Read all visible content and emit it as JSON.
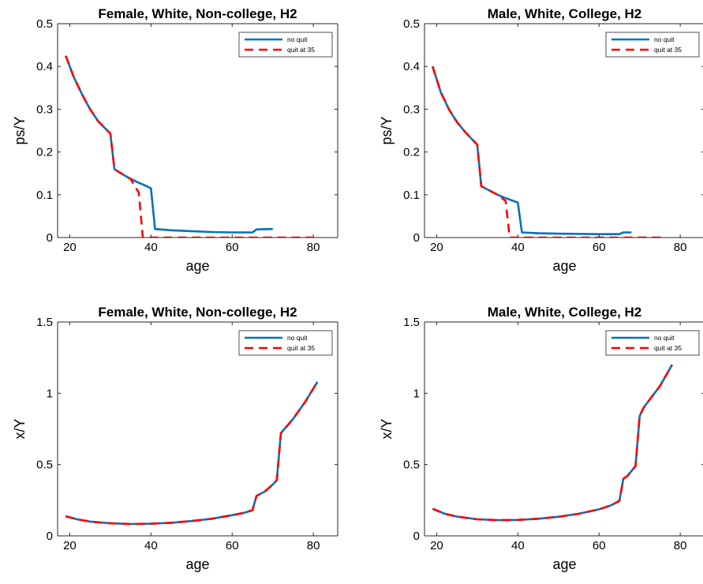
{
  "chart_data": [
    {
      "type": "line",
      "title": "Female, White, Non-college, H2",
      "xlabel": "age",
      "ylabel": "ps/Y",
      "xlim": [
        17,
        86
      ],
      "ylim": [
        0,
        0.5
      ],
      "xticks": [
        "20",
        "40",
        "60",
        "80"
      ],
      "yticks": [
        "0",
        "0.1",
        "0.2",
        "0.3",
        "0.4",
        "0.5"
      ],
      "legend_position": "top-right",
      "series": [
        {
          "name": "no quit",
          "color": "#0072BD",
          "style": "solid",
          "points": [
            [
              19,
              0.425
            ],
            [
              21,
              0.375
            ],
            [
              23,
              0.335
            ],
            [
              25,
              0.3
            ],
            [
              27,
              0.272
            ],
            [
              30,
              0.243
            ],
            [
              31,
              0.16
            ],
            [
              33,
              0.148
            ],
            [
              35,
              0.137
            ],
            [
              37,
              0.128
            ],
            [
              39,
              0.12
            ],
            [
              40,
              0.115
            ],
            [
              41,
              0.02
            ],
            [
              45,
              0.017
            ],
            [
              50,
              0.015
            ],
            [
              55,
              0.013
            ],
            [
              60,
              0.012
            ],
            [
              65,
              0.012
            ],
            [
              66,
              0.019
            ],
            [
              70,
              0.02
            ]
          ]
        },
        {
          "name": "quit at 35",
          "color": "#FF0000",
          "style": "dashed",
          "points": [
            [
              19,
              0.425
            ],
            [
              21,
              0.375
            ],
            [
              23,
              0.335
            ],
            [
              25,
              0.3
            ],
            [
              27,
              0.272
            ],
            [
              30,
              0.243
            ],
            [
              31,
              0.16
            ],
            [
              33,
              0.148
            ],
            [
              35,
              0.137
            ],
            [
              36,
              0.12
            ],
            [
              37,
              0.105
            ],
            [
              38,
              0.0
            ],
            [
              45,
              0.0
            ],
            [
              60,
              0.0
            ],
            [
              70,
              0.0
            ],
            [
              80,
              0.0
            ]
          ]
        }
      ]
    },
    {
      "type": "line",
      "title": "Male, White, College, H2",
      "xlabel": "age",
      "ylabel": "ps/Y",
      "xlim": [
        17,
        86
      ],
      "ylim": [
        0,
        0.5
      ],
      "xticks": [
        "20",
        "40",
        "60",
        "80"
      ],
      "yticks": [
        "0",
        "0.1",
        "0.2",
        "0.3",
        "0.4",
        "0.5"
      ],
      "legend_position": "top-right",
      "series": [
        {
          "name": "no quit",
          "color": "#0072BD",
          "style": "solid",
          "points": [
            [
              19,
              0.4
            ],
            [
              21,
              0.34
            ],
            [
              23,
              0.3
            ],
            [
              25,
              0.27
            ],
            [
              27,
              0.247
            ],
            [
              30,
              0.217
            ],
            [
              31,
              0.12
            ],
            [
              33,
              0.11
            ],
            [
              35,
              0.1
            ],
            [
              37,
              0.092
            ],
            [
              40,
              0.082
            ],
            [
              41,
              0.012
            ],
            [
              45,
              0.01
            ],
            [
              50,
              0.009
            ],
            [
              60,
              0.008
            ],
            [
              65,
              0.008
            ],
            [
              66,
              0.012
            ],
            [
              68,
              0.012
            ]
          ]
        },
        {
          "name": "quit at 35",
          "color": "#FF0000",
          "style": "dashed",
          "points": [
            [
              19,
              0.4
            ],
            [
              21,
              0.34
            ],
            [
              23,
              0.3
            ],
            [
              25,
              0.27
            ],
            [
              27,
              0.247
            ],
            [
              30,
              0.217
            ],
            [
              31,
              0.12
            ],
            [
              33,
              0.11
            ],
            [
              35,
              0.1
            ],
            [
              36,
              0.093
            ],
            [
              37,
              0.085
            ],
            [
              38,
              0.0
            ],
            [
              45,
              0.0
            ],
            [
              60,
              0.0
            ],
            [
              70,
              0.0
            ],
            [
              76,
              0.0
            ]
          ]
        }
      ]
    },
    {
      "type": "line",
      "title": "Female, White, Non-college, H2",
      "xlabel": "age",
      "ylabel": "x/Y",
      "xlim": [
        17,
        86
      ],
      "ylim": [
        0,
        1.5
      ],
      "xticks": [
        "20",
        "40",
        "60",
        "80"
      ],
      "yticks": [
        "0",
        "0.5",
        "1",
        "1.5"
      ],
      "legend_position": "top-right",
      "series": [
        {
          "name": "no quit",
          "color": "#0072BD",
          "style": "solid",
          "points": [
            [
              19,
              0.137
            ],
            [
              22,
              0.115
            ],
            [
              25,
              0.1
            ],
            [
              30,
              0.088
            ],
            [
              35,
              0.083
            ],
            [
              40,
              0.085
            ],
            [
              45,
              0.092
            ],
            [
              50,
              0.104
            ],
            [
              55,
              0.12
            ],
            [
              60,
              0.145
            ],
            [
              63,
              0.162
            ],
            [
              65,
              0.18
            ],
            [
              66,
              0.28
            ],
            [
              68,
              0.31
            ],
            [
              70,
              0.36
            ],
            [
              71,
              0.39
            ],
            [
              72,
              0.72
            ],
            [
              75,
              0.82
            ],
            [
              78,
              0.94
            ],
            [
              81,
              1.08
            ]
          ]
        },
        {
          "name": "quit at 35",
          "color": "#FF0000",
          "style": "dashed",
          "points": [
            [
              19,
              0.137
            ],
            [
              22,
              0.115
            ],
            [
              25,
              0.1
            ],
            [
              30,
              0.088
            ],
            [
              35,
              0.083
            ],
            [
              40,
              0.085
            ],
            [
              45,
              0.092
            ],
            [
              50,
              0.104
            ],
            [
              55,
              0.12
            ],
            [
              60,
              0.145
            ],
            [
              63,
              0.162
            ],
            [
              65,
              0.18
            ],
            [
              66,
              0.28
            ],
            [
              68,
              0.31
            ],
            [
              70,
              0.36
            ],
            [
              71,
              0.39
            ],
            [
              72,
              0.72
            ],
            [
              75,
              0.82
            ],
            [
              78,
              0.94
            ],
            [
              81,
              1.08
            ]
          ]
        }
      ]
    },
    {
      "type": "line",
      "title": "Male, White, College, H2",
      "xlabel": "age",
      "ylabel": "x/Y",
      "xlim": [
        17,
        86
      ],
      "ylim": [
        0,
        1.5
      ],
      "xticks": [
        "20",
        "40",
        "60",
        "80"
      ],
      "yticks": [
        "0",
        "0.5",
        "1",
        "1.5"
      ],
      "legend_position": "top-right",
      "series": [
        {
          "name": "no quit",
          "color": "#0072BD",
          "style": "solid",
          "points": [
            [
              19,
              0.19
            ],
            [
              22,
              0.155
            ],
            [
              25,
              0.135
            ],
            [
              30,
              0.116
            ],
            [
              35,
              0.11
            ],
            [
              40,
              0.112
            ],
            [
              45,
              0.12
            ],
            [
              50,
              0.134
            ],
            [
              55,
              0.155
            ],
            [
              60,
              0.186
            ],
            [
              63,
              0.215
            ],
            [
              65,
              0.245
            ],
            [
              66,
              0.4
            ],
            [
              67,
              0.42
            ],
            [
              69,
              0.49
            ],
            [
              70,
              0.84
            ],
            [
              71,
              0.9
            ],
            [
              75,
              1.05
            ],
            [
              78,
              1.2
            ]
          ]
        },
        {
          "name": "quit at 35",
          "color": "#FF0000",
          "style": "dashed",
          "points": [
            [
              19,
              0.19
            ],
            [
              22,
              0.155
            ],
            [
              25,
              0.135
            ],
            [
              30,
              0.116
            ],
            [
              35,
              0.11
            ],
            [
              40,
              0.112
            ],
            [
              45,
              0.12
            ],
            [
              50,
              0.134
            ],
            [
              55,
              0.155
            ],
            [
              60,
              0.186
            ],
            [
              63,
              0.215
            ],
            [
              65,
              0.245
            ],
            [
              66,
              0.4
            ],
            [
              67,
              0.42
            ],
            [
              69,
              0.49
            ],
            [
              70,
              0.84
            ],
            [
              71,
              0.9
            ],
            [
              75,
              1.05
            ],
            [
              78,
              1.2
            ]
          ]
        }
      ]
    }
  ]
}
